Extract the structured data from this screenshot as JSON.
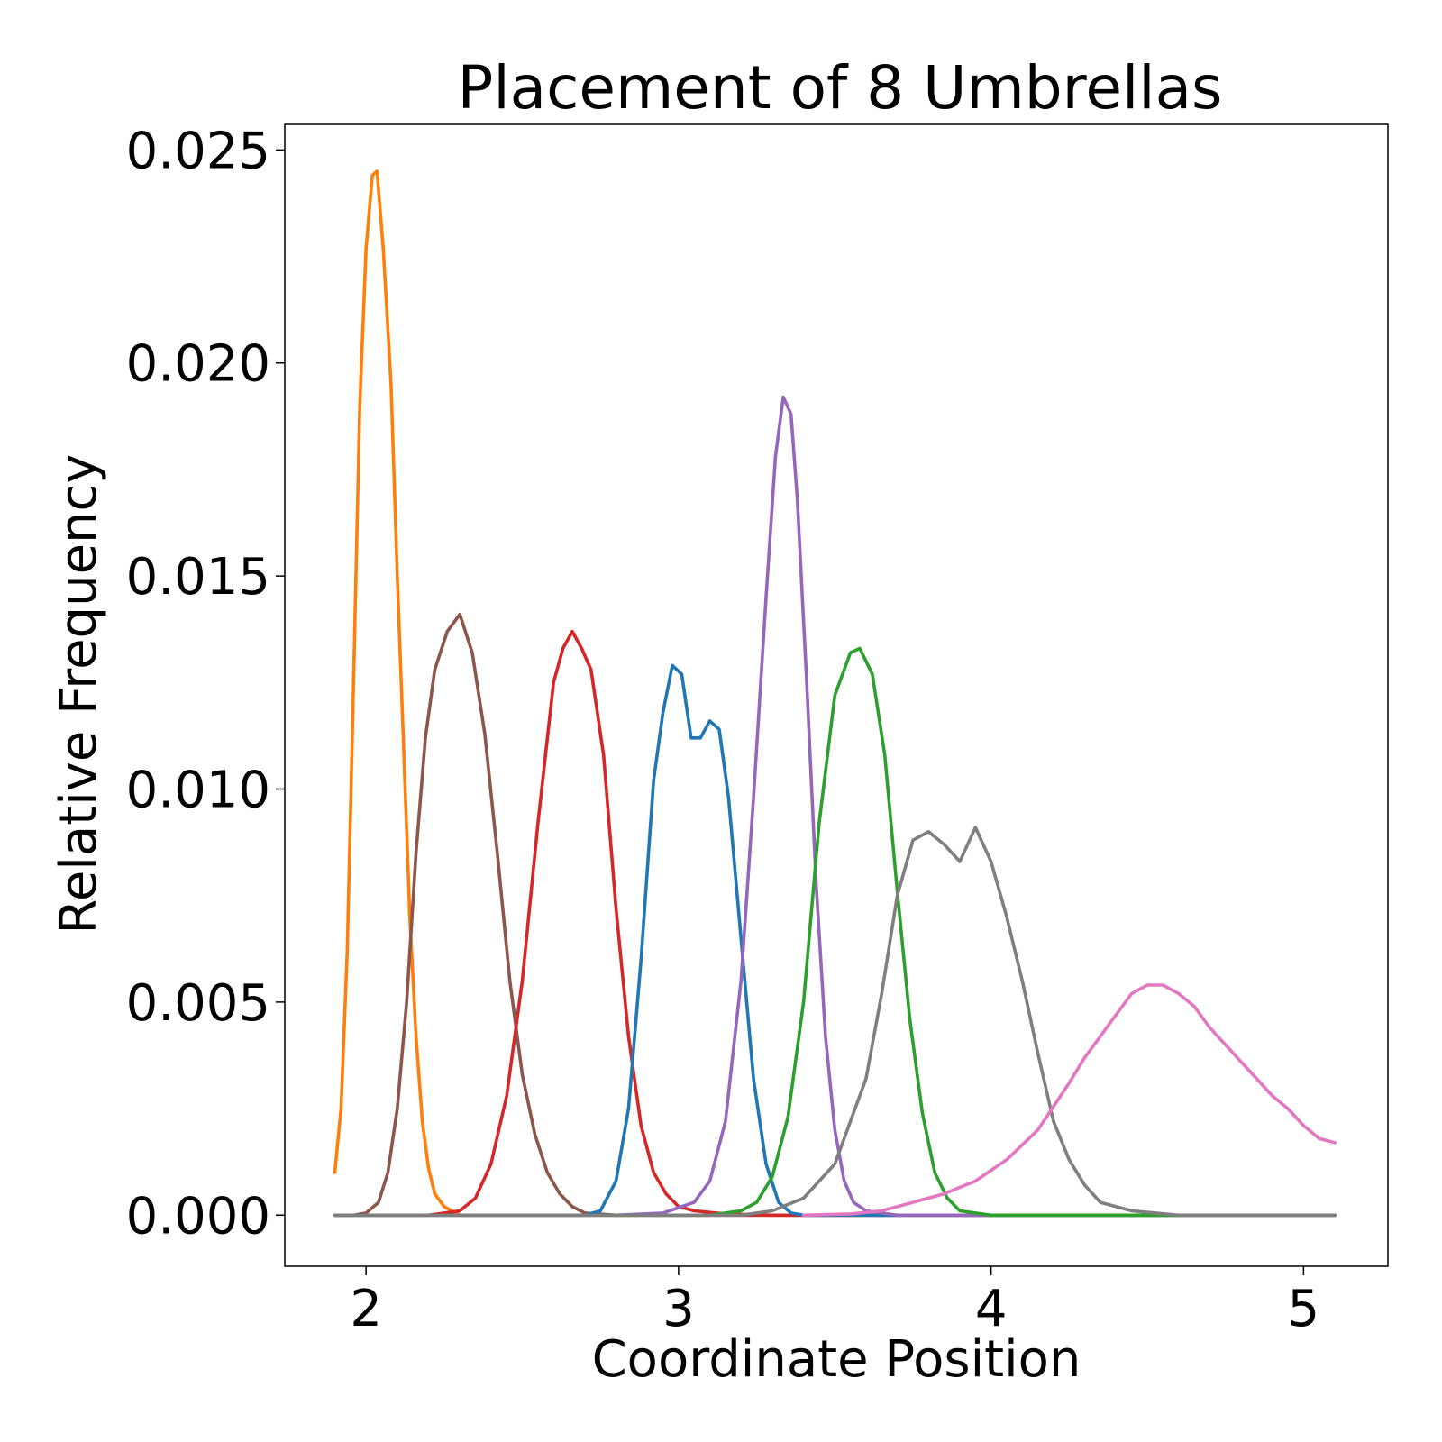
{
  "chart_data": {
    "type": "line",
    "title": "Placement of 8 Umbrellas",
    "xlabel": "Coordinate Position",
    "ylabel": "Relative Frequency",
    "xlim": [
      1.74,
      5.27
    ],
    "ylim": [
      -0.0012,
      0.0256
    ],
    "xticks": [
      2,
      3,
      4,
      5
    ],
    "xtick_labels": [
      "2",
      "3",
      "4",
      "5"
    ],
    "yticks": [
      0.0,
      0.005,
      0.01,
      0.015,
      0.02,
      0.025
    ],
    "ytick_labels": [
      "0.000",
      "0.005",
      "0.010",
      "0.015",
      "0.020",
      "0.025"
    ],
    "grid": false,
    "legend": "none",
    "series": [
      {
        "color": "#ff7f0e",
        "points": [
          [
            1.9,
            0.001
          ],
          [
            1.92,
            0.0025
          ],
          [
            1.94,
            0.0062
          ],
          [
            1.96,
            0.0125
          ],
          [
            1.98,
            0.019
          ],
          [
            2.0,
            0.0227
          ],
          [
            2.02,
            0.0244
          ],
          [
            2.035,
            0.0245
          ],
          [
            2.055,
            0.0227
          ],
          [
            2.08,
            0.0195
          ],
          [
            2.1,
            0.015
          ],
          [
            2.12,
            0.011
          ],
          [
            2.14,
            0.007
          ],
          [
            2.16,
            0.0042
          ],
          [
            2.18,
            0.0022
          ],
          [
            2.2,
            0.0011
          ],
          [
            2.22,
            0.0005
          ],
          [
            2.25,
            0.0002
          ],
          [
            2.3,
            0.0
          ],
          [
            2.4,
            0.0
          ],
          [
            3.0,
            0.0
          ],
          [
            4.0,
            0.0
          ],
          [
            5.1,
            0.0
          ]
        ]
      },
      {
        "color": "#8c564b",
        "points": [
          [
            1.9,
            0.0
          ],
          [
            1.96,
            0.0
          ],
          [
            2.0,
            5e-05
          ],
          [
            2.04,
            0.0003
          ],
          [
            2.07,
            0.001
          ],
          [
            2.1,
            0.0025
          ],
          [
            2.13,
            0.005
          ],
          [
            2.16,
            0.0085
          ],
          [
            2.19,
            0.0112
          ],
          [
            2.22,
            0.0128
          ],
          [
            2.26,
            0.0137
          ],
          [
            2.3,
            0.0141
          ],
          [
            2.34,
            0.0132
          ],
          [
            2.38,
            0.0113
          ],
          [
            2.42,
            0.0085
          ],
          [
            2.46,
            0.0055
          ],
          [
            2.5,
            0.0033
          ],
          [
            2.54,
            0.0019
          ],
          [
            2.58,
            0.001
          ],
          [
            2.62,
            0.0005
          ],
          [
            2.66,
            0.0002
          ],
          [
            2.7,
            5e-05
          ],
          [
            2.8,
            0.0
          ],
          [
            3.5,
            0.0
          ],
          [
            4.5,
            0.0
          ],
          [
            5.1,
            0.0
          ]
        ]
      },
      {
        "color": "#d62728",
        "points": [
          [
            1.9,
            0.0
          ],
          [
            2.2,
            0.0
          ],
          [
            2.3,
            0.0001
          ],
          [
            2.35,
            0.0004
          ],
          [
            2.4,
            0.0012
          ],
          [
            2.45,
            0.0028
          ],
          [
            2.5,
            0.0055
          ],
          [
            2.55,
            0.0092
          ],
          [
            2.6,
            0.0125
          ],
          [
            2.63,
            0.0133
          ],
          [
            2.66,
            0.0137
          ],
          [
            2.69,
            0.0133
          ],
          [
            2.72,
            0.0128
          ],
          [
            2.76,
            0.0108
          ],
          [
            2.8,
            0.0072
          ],
          [
            2.84,
            0.0042
          ],
          [
            2.88,
            0.0021
          ],
          [
            2.92,
            0.001
          ],
          [
            2.96,
            0.0005
          ],
          [
            3.0,
            0.0002
          ],
          [
            3.05,
            0.0001
          ],
          [
            3.15,
            3e-05
          ],
          [
            3.3,
            0.0
          ],
          [
            5.1,
            0.0
          ]
        ]
      },
      {
        "color": "#1f77b4",
        "points": [
          [
            1.9,
            0.0
          ],
          [
            2.7,
            0.0
          ],
          [
            2.75,
            0.0001
          ],
          [
            2.8,
            0.0008
          ],
          [
            2.84,
            0.0025
          ],
          [
            2.88,
            0.006
          ],
          [
            2.92,
            0.0102
          ],
          [
            2.95,
            0.0118
          ],
          [
            2.98,
            0.0129
          ],
          [
            3.01,
            0.0127
          ],
          [
            3.04,
            0.0112
          ],
          [
            3.07,
            0.0112
          ],
          [
            3.1,
            0.0116
          ],
          [
            3.13,
            0.0114
          ],
          [
            3.16,
            0.0098
          ],
          [
            3.2,
            0.0065
          ],
          [
            3.24,
            0.0032
          ],
          [
            3.28,
            0.0012
          ],
          [
            3.32,
            0.0003
          ],
          [
            3.36,
            5e-05
          ],
          [
            3.4,
            0.0
          ],
          [
            5.1,
            0.0
          ]
        ]
      },
      {
        "color": "#9467bd",
        "points": [
          [
            1.9,
            0.0
          ],
          [
            2.8,
            0.0
          ],
          [
            2.95,
            5e-05
          ],
          [
            3.05,
            0.0003
          ],
          [
            3.1,
            0.0008
          ],
          [
            3.15,
            0.0022
          ],
          [
            3.2,
            0.0055
          ],
          [
            3.24,
            0.0098
          ],
          [
            3.28,
            0.0145
          ],
          [
            3.31,
            0.0178
          ],
          [
            3.335,
            0.0192
          ],
          [
            3.36,
            0.0188
          ],
          [
            3.38,
            0.0168
          ],
          [
            3.41,
            0.0125
          ],
          [
            3.44,
            0.0078
          ],
          [
            3.47,
            0.0042
          ],
          [
            3.5,
            0.002
          ],
          [
            3.53,
            0.0008
          ],
          [
            3.56,
            0.0003
          ],
          [
            3.6,
            0.0001
          ],
          [
            3.7,
            0.0
          ],
          [
            5.1,
            0.0
          ]
        ]
      },
      {
        "color": "#2ca02c",
        "points": [
          [
            1.9,
            0.0
          ],
          [
            3.1,
            0.0
          ],
          [
            3.2,
            0.0001
          ],
          [
            3.25,
            0.0003
          ],
          [
            3.3,
            0.0009
          ],
          [
            3.35,
            0.0023
          ],
          [
            3.4,
            0.005
          ],
          [
            3.45,
            0.0092
          ],
          [
            3.5,
            0.0122
          ],
          [
            3.55,
            0.0132
          ],
          [
            3.58,
            0.0133
          ],
          [
            3.62,
            0.0127
          ],
          [
            3.66,
            0.0108
          ],
          [
            3.7,
            0.0076
          ],
          [
            3.74,
            0.0046
          ],
          [
            3.78,
            0.0024
          ],
          [
            3.82,
            0.001
          ],
          [
            3.86,
            0.0004
          ],
          [
            3.9,
            0.0001
          ],
          [
            4.0,
            0.0
          ],
          [
            5.1,
            0.0
          ]
        ]
      },
      {
        "color": "#7f7f7f",
        "points": [
          [
            1.9,
            0.0
          ],
          [
            3.2,
            0.0
          ],
          [
            3.3,
            0.0001
          ],
          [
            3.4,
            0.0004
          ],
          [
            3.5,
            0.0012
          ],
          [
            3.6,
            0.0032
          ],
          [
            3.65,
            0.0052
          ],
          [
            3.7,
            0.0075
          ],
          [
            3.75,
            0.0088
          ],
          [
            3.8,
            0.009
          ],
          [
            3.85,
            0.0087
          ],
          [
            3.9,
            0.0083
          ],
          [
            3.95,
            0.0091
          ],
          [
            4.0,
            0.0083
          ],
          [
            4.05,
            0.007
          ],
          [
            4.1,
            0.0055
          ],
          [
            4.15,
            0.0038
          ],
          [
            4.2,
            0.0022
          ],
          [
            4.25,
            0.0013
          ],
          [
            4.3,
            0.0007
          ],
          [
            4.35,
            0.0003
          ],
          [
            4.45,
            0.0001
          ],
          [
            4.6,
            0.0
          ],
          [
            5.1,
            0.0
          ]
        ]
      },
      {
        "color": "#e377c2",
        "points": [
          [
            3.4,
            0.0
          ],
          [
            3.55,
            3e-05
          ],
          [
            3.65,
            0.0001
          ],
          [
            3.75,
            0.0003
          ],
          [
            3.85,
            0.0005
          ],
          [
            3.95,
            0.0008
          ],
          [
            4.05,
            0.0013
          ],
          [
            4.15,
            0.002
          ],
          [
            4.25,
            0.0031
          ],
          [
            4.3,
            0.0037
          ],
          [
            4.35,
            0.0042
          ],
          [
            4.4,
            0.0047
          ],
          [
            4.45,
            0.0052
          ],
          [
            4.5,
            0.0054
          ],
          [
            4.55,
            0.0054
          ],
          [
            4.6,
            0.0052
          ],
          [
            4.65,
            0.0049
          ],
          [
            4.7,
            0.0044
          ],
          [
            4.75,
            0.004
          ],
          [
            4.8,
            0.0036
          ],
          [
            4.85,
            0.0032
          ],
          [
            4.9,
            0.0028
          ],
          [
            4.95,
            0.0025
          ],
          [
            5.0,
            0.0021
          ],
          [
            5.05,
            0.0018
          ],
          [
            5.1,
            0.0017
          ]
        ]
      }
    ]
  }
}
